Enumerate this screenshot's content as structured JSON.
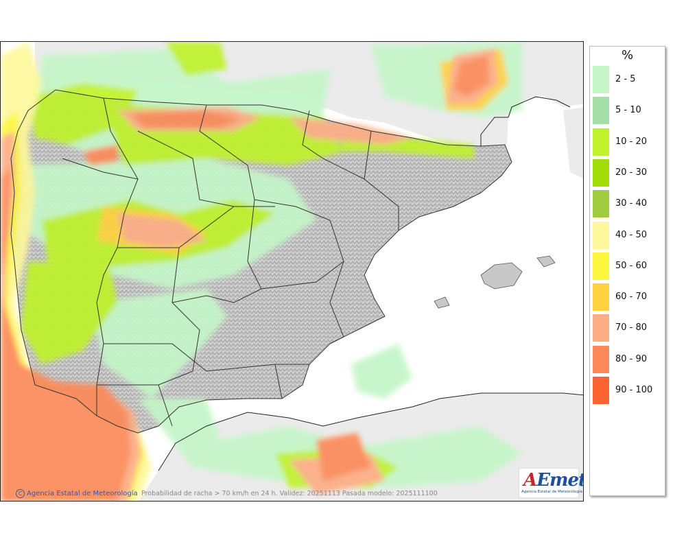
{
  "legend": {
    "unit": "%",
    "items": [
      {
        "label": "2 - 5",
        "color": "#c4f6c7"
      },
      {
        "label": "5 - 10",
        "color": "#a3dfa6"
      },
      {
        "label": "10 - 20",
        "color": "#bff22c"
      },
      {
        "label": "20 - 30",
        "color": "#a2dd0a"
      },
      {
        "label": "30 - 40",
        "color": "#9fcc3c"
      },
      {
        "label": "40 - 50",
        "color": "#fdf89b"
      },
      {
        "label": "50 - 60",
        "color": "#fdf63e"
      },
      {
        "label": "60 - 70",
        "color": "#fdd23e"
      },
      {
        "label": "70 - 80",
        "color": "#fdad84"
      },
      {
        "label": "80 - 90",
        "color": "#fc8a58"
      },
      {
        "label": "90 - 100",
        "color": "#fc6431"
      }
    ]
  },
  "footer": {
    "credit_symbol": "C",
    "credit": "Agencia Estatal de Meteorología",
    "caption": "Probabilidad de racha > 70 km/h en 24 h. Validez: 20251113 Pasada modelo: 2025111100"
  },
  "logo": {
    "brand_a": "A",
    "brand_rest": "Emet",
    "subtitle": "Agencia Estatal de Meteorología"
  },
  "colors": {
    "land_gray": "#c9c9c9",
    "other_land": "#ebebeb",
    "sea": "#ffffff",
    "border": "#333333"
  }
}
